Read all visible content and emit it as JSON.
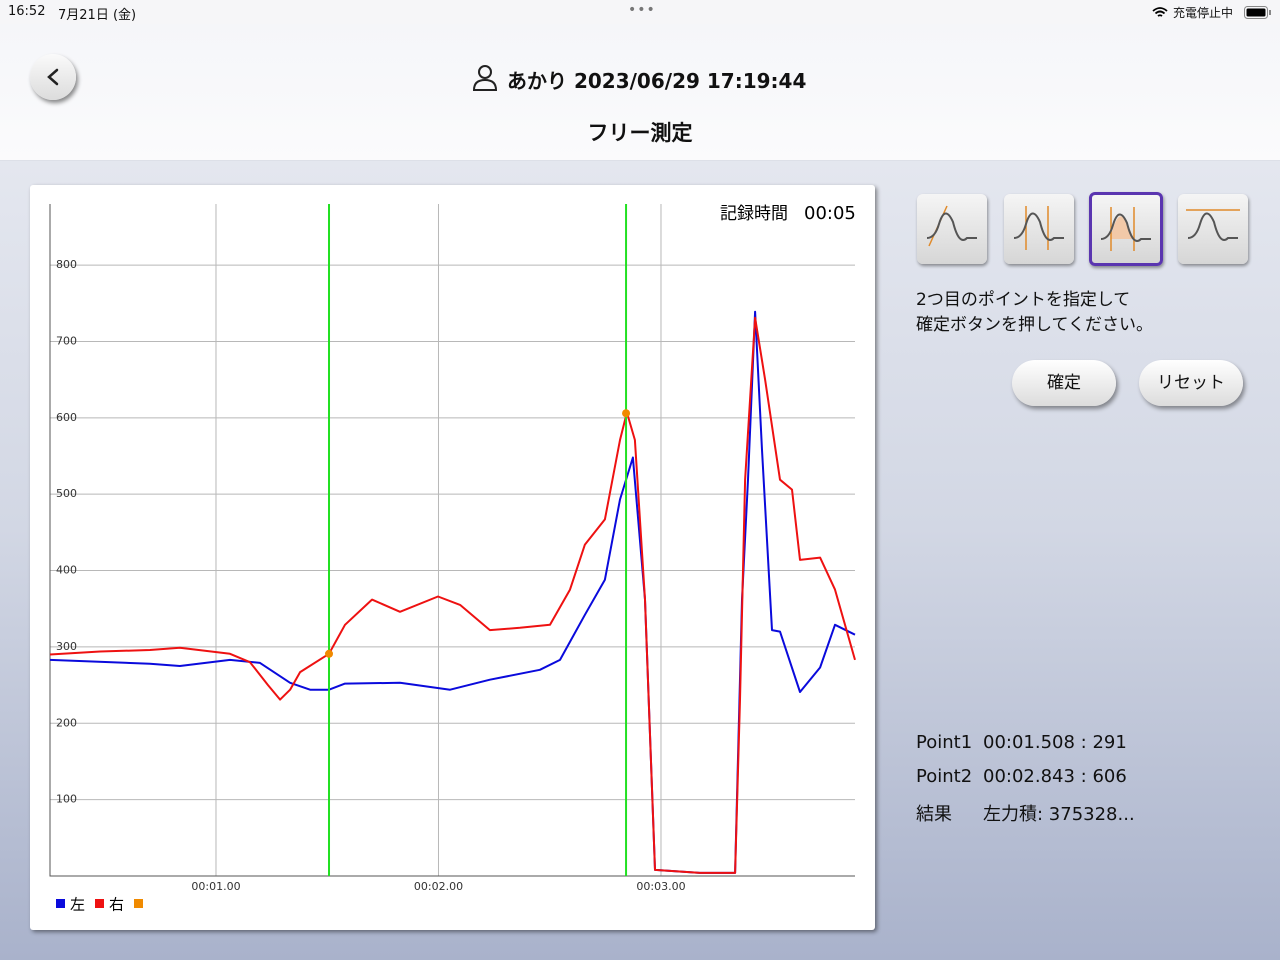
{
  "status_bar": {
    "time": "16:52",
    "date": "7月21日 (金)",
    "battery": "充電停止中"
  },
  "header": {
    "user": "あかり 2023/06/29 17:19:44",
    "title": "フリー測定"
  },
  "chart_annotation": {
    "label": "記録時間",
    "value": "00:05"
  },
  "chart_data": {
    "type": "line",
    "xlim": [
      0.254,
      3.872
    ],
    "xticks": [
      {
        "value": 1,
        "label": "00:01.00"
      },
      {
        "value": 2,
        "label": "00:02.00"
      },
      {
        "value": 3,
        "label": "00:03.00"
      }
    ],
    "ylim": [
      0,
      880
    ],
    "yticks": [
      100,
      200,
      300,
      400,
      500,
      600,
      700,
      800
    ],
    "grid": true,
    "cursor_color": "#22e022",
    "series": [
      {
        "name": "左",
        "color": "#0a0adc",
        "x": [
          0.254,
          0.703,
          0.838,
          1.063,
          1.198,
          1.333,
          1.423,
          1.508,
          1.58,
          1.827,
          2.052,
          2.231,
          2.456,
          2.546,
          2.658,
          2.748,
          2.816,
          2.874,
          2.928,
          2.973,
          3.175,
          3.333,
          3.364,
          3.391,
          3.423,
          3.454,
          3.499,
          3.535,
          3.625,
          3.715,
          3.782,
          3.872
        ],
        "values": [
          283,
          278,
          275,
          283,
          279,
          253,
          244,
          244,
          252,
          253,
          244,
          257,
          270,
          283,
          342,
          388,
          493,
          548,
          362,
          8,
          4,
          4,
          362,
          519,
          739,
          558,
          322,
          320,
          241,
          273,
          329,
          316
        ]
      },
      {
        "name": "右",
        "color": "#ee1111",
        "x": [
          0.254,
          0.479,
          0.703,
          0.838,
          1.063,
          1.153,
          1.234,
          1.288,
          1.333,
          1.378,
          1.508,
          1.58,
          1.701,
          1.827,
          1.998,
          2.097,
          2.231,
          2.366,
          2.501,
          2.591,
          2.658,
          2.748,
          2.816,
          2.847,
          2.883,
          2.928,
          2.973,
          3.175,
          3.333,
          3.355,
          3.378,
          3.423,
          3.468,
          3.535,
          3.589,
          3.625,
          3.715,
          3.782,
          3.872
        ],
        "values": [
          290,
          294,
          296,
          299,
          291,
          280,
          250,
          231,
          244,
          267,
          291,
          329,
          362,
          346,
          366,
          355,
          322,
          325,
          329,
          375,
          434,
          467,
          571,
          607,
          571,
          362,
          8,
          4,
          4,
          231,
          519,
          731,
          650,
          519,
          506,
          414,
          417,
          375,
          283
        ]
      },
      {
        "type": "scatter",
        "color": "#f08a00",
        "x": [
          1.508,
          2.843
        ],
        "values": [
          291,
          606
        ]
      }
    ]
  },
  "instruction": [
    "2つ目のポイントを指定して",
    "確定ボタンを押してください。"
  ],
  "buttons": {
    "confirm": "確定",
    "reset": "リセット"
  },
  "results": [
    {
      "label": "Point1",
      "value": "00:01.508 : 291"
    },
    {
      "label": "Point2",
      "value": "00:02.843 : 606"
    },
    {
      "label": "結果",
      "value": "左力積: 375328..."
    }
  ]
}
